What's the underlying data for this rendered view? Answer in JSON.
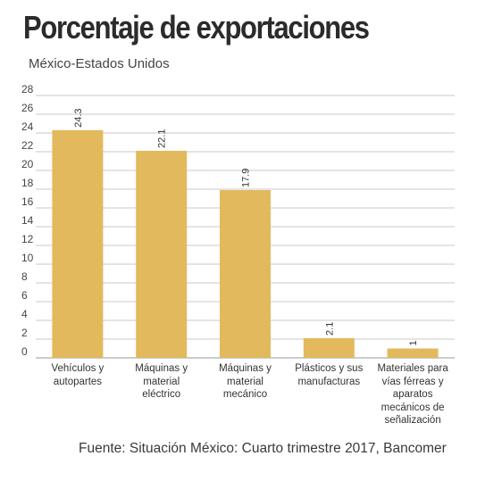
{
  "chart_data": {
    "type": "bar",
    "title": "Porcentaje de exportaciones",
    "subtitle": "México-Estados Unidos",
    "categories": [
      "Vehículos y autopartes",
      "Máquinas y material eléctrico",
      "Máquinas y material mecánico",
      "Plásticos y sus manufacturas",
      "Materiales para vías férreas y aparatos mecánicos de señalización"
    ],
    "values": [
      24.3,
      22.1,
      17.9,
      2.1,
      1
    ],
    "data_labels": [
      "24.3",
      "22.1",
      "17.9",
      "2.1",
      "1"
    ],
    "yticks": [
      "0",
      "2",
      "4",
      "6",
      "8",
      "10",
      "12",
      "14",
      "16",
      "18",
      "20",
      "22",
      "24",
      "26",
      "28"
    ],
    "ylim": [
      0,
      28
    ],
    "grid": true,
    "bar_color": "#e2b95c",
    "source": "Fuente: Situación México: Cuarto trimestre 2017, Bancomer"
  }
}
